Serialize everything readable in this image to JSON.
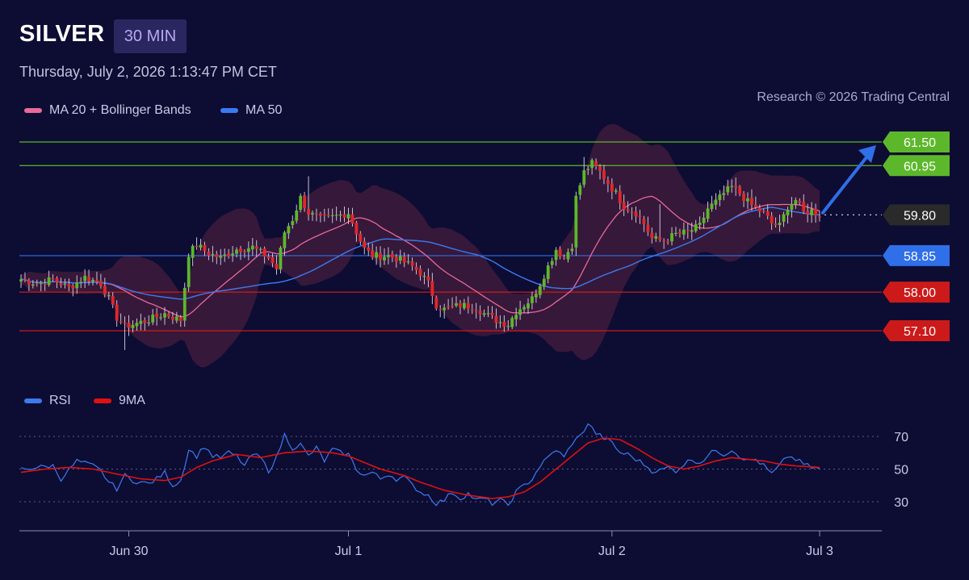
{
  "header": {
    "symbol": "SILVER",
    "timeframe": "30 MIN",
    "timestamp": "Thursday, July 2, 2026 1:13:47 PM CET",
    "credit": "Research © 2026 Trading Central"
  },
  "legend_price": [
    {
      "label": "MA 20 + Bollinger Bands",
      "color": "#e8699a"
    },
    {
      "label": "MA 50",
      "color": "#3b7bf0"
    }
  ],
  "legend_rsi": [
    {
      "label": "RSI",
      "color": "#3b7bf0"
    },
    {
      "label": "9MA",
      "color": "#e01010"
    }
  ],
  "colors": {
    "background": "#0d0c33",
    "bull": "#5cb82a",
    "bear": "#e0282a",
    "resistance": "#5cb82a",
    "pivot": "#2f6fe8",
    "support": "#cc1a1a",
    "current": "#2a2a2a",
    "arrow": "#2f6fe8",
    "band_fill": "#5a2240"
  },
  "chart_data": [
    {
      "type": "candlestick",
      "title": "SILVER",
      "ylim": [
        56.6,
        62.0
      ],
      "x_ticks": [
        {
          "label": "Jun 30",
          "bar": 27
        },
        {
          "label": "Jul 1",
          "bar": 82
        },
        {
          "label": "Jul 2",
          "bar": 148
        },
        {
          "label": "Jul 3",
          "bar": 200
        }
      ],
      "levels": [
        {
          "value": 61.5,
          "label": "61.50",
          "kind": "resistance"
        },
        {
          "value": 60.95,
          "label": "60.95",
          "kind": "resistance"
        },
        {
          "value": 59.8,
          "label": "59.80",
          "kind": "current"
        },
        {
          "value": 58.85,
          "label": "58.85",
          "kind": "pivot"
        },
        {
          "value": 58.0,
          "label": "58.00",
          "kind": "support"
        },
        {
          "value": 57.1,
          "label": "57.10",
          "kind": "support"
        }
      ],
      "close_anchors": [
        [
          0,
          58.3
        ],
        [
          4,
          58.2
        ],
        [
          8,
          58.3
        ],
        [
          12,
          58.1
        ],
        [
          16,
          58.35
        ],
        [
          20,
          58.2
        ],
        [
          22,
          57.85
        ],
        [
          24,
          57.4
        ],
        [
          26,
          57.2
        ],
        [
          28,
          57.25
        ],
        [
          32,
          57.35
        ],
        [
          36,
          57.5
        ],
        [
          40,
          57.35
        ],
        [
          42,
          58.9
        ],
        [
          44,
          59.1
        ],
        [
          47,
          58.9
        ],
        [
          50,
          58.8
        ],
        [
          54,
          59.0
        ],
        [
          58,
          59.05
        ],
        [
          62,
          58.8
        ],
        [
          64,
          58.55
        ],
        [
          66,
          59.4
        ],
        [
          68,
          59.7
        ],
        [
          70,
          60.2
        ],
        [
          72,
          59.85
        ],
        [
          75,
          59.7
        ],
        [
          78,
          59.75
        ],
        [
          82,
          59.85
        ],
        [
          84,
          59.4
        ],
        [
          86,
          59.0
        ],
        [
          88,
          58.85
        ],
        [
          92,
          58.85
        ],
        [
          95,
          58.75
        ],
        [
          98,
          58.6
        ],
        [
          100,
          58.45
        ],
        [
          102,
          58.2
        ],
        [
          104,
          57.7
        ],
        [
          106,
          57.6
        ],
        [
          110,
          57.7
        ],
        [
          114,
          57.65
        ],
        [
          116,
          57.5
        ],
        [
          118,
          57.4
        ],
        [
          120,
          57.3
        ],
        [
          122,
          57.25
        ],
        [
          124,
          57.55
        ],
        [
          126,
          57.7
        ],
        [
          128,
          57.85
        ],
        [
          130,
          58.2
        ],
        [
          132,
          58.6
        ],
        [
          134,
          59.0
        ],
        [
          136,
          58.8
        ],
        [
          138,
          59.1
        ],
        [
          139,
          60.2
        ],
        [
          141,
          60.8
        ],
        [
          143,
          61.0
        ],
        [
          145,
          60.8
        ],
        [
          147,
          60.55
        ],
        [
          149,
          60.3
        ],
        [
          151,
          60.0
        ],
        [
          154,
          59.85
        ],
        [
          156,
          59.6
        ],
        [
          158,
          59.25
        ],
        [
          161,
          59.2
        ],
        [
          164,
          59.35
        ],
        [
          167,
          59.4
        ],
        [
          170,
          59.55
        ],
        [
          172,
          59.95
        ],
        [
          174,
          60.1
        ],
        [
          176,
          60.3
        ],
        [
          178,
          60.45
        ],
        [
          180,
          60.3
        ],
        [
          182,
          60.1
        ],
        [
          184,
          59.95
        ],
        [
          186,
          59.85
        ],
        [
          188,
          59.6
        ],
        [
          190,
          59.55
        ],
        [
          192,
          60.0
        ],
        [
          194,
          60.15
        ],
        [
          196,
          59.85
        ],
        [
          198,
          59.9
        ],
        [
          200,
          59.8
        ]
      ]
    },
    {
      "type": "line",
      "series": [
        {
          "name": "RSI",
          "values_anchors": [
            [
              0,
              50
            ],
            [
              4,
              51
            ],
            [
              8,
              52
            ],
            [
              10,
              44
            ],
            [
              14,
              55
            ],
            [
              18,
              52
            ],
            [
              20,
              49
            ],
            [
              22,
              42
            ],
            [
              24,
              38
            ],
            [
              26,
              46
            ],
            [
              28,
              43
            ],
            [
              32,
              41
            ],
            [
              34,
              44
            ],
            [
              36,
              48
            ],
            [
              38,
              40
            ],
            [
              40,
              43
            ],
            [
              42,
              62
            ],
            [
              44,
              58
            ],
            [
              46,
              64
            ],
            [
              48,
              58
            ],
            [
              50,
              57
            ],
            [
              52,
              60
            ],
            [
              54,
              58
            ],
            [
              56,
              52
            ],
            [
              58,
              59
            ],
            [
              60,
              57
            ],
            [
              62,
              49
            ],
            [
              64,
              57
            ],
            [
              66,
              71
            ],
            [
              68,
              63
            ],
            [
              70,
              65
            ],
            [
              72,
              58
            ],
            [
              74,
              63
            ],
            [
              76,
              55
            ],
            [
              78,
              62
            ],
            [
              80,
              60
            ],
            [
              82,
              59
            ],
            [
              84,
              50
            ],
            [
              86,
              46
            ],
            [
              88,
              48
            ],
            [
              90,
              44
            ],
            [
              92,
              47
            ],
            [
              94,
              44
            ],
            [
              96,
              45
            ],
            [
              98,
              40
            ],
            [
              100,
              36
            ],
            [
              102,
              34
            ],
            [
              104,
              29
            ],
            [
              106,
              31
            ],
            [
              108,
              36
            ],
            [
              110,
              32
            ],
            [
              112,
              35
            ],
            [
              114,
              31
            ],
            [
              116,
              32
            ],
            [
              118,
              29
            ],
            [
              120,
              31
            ],
            [
              122,
              28
            ],
            [
              124,
              36
            ],
            [
              126,
              40
            ],
            [
              128,
              44
            ],
            [
              130,
              52
            ],
            [
              132,
              57
            ],
            [
              134,
              62
            ],
            [
              136,
              57
            ],
            [
              138,
              66
            ],
            [
              140,
              70
            ],
            [
              142,
              78
            ],
            [
              144,
              72
            ],
            [
              146,
              69
            ],
            [
              148,
              66
            ],
            [
              150,
              60
            ],
            [
              152,
              59
            ],
            [
              154,
              56
            ],
            [
              156,
              53
            ],
            [
              158,
              49
            ],
            [
              160,
              49
            ],
            [
              162,
              51
            ],
            [
              164,
              49
            ],
            [
              166,
              53
            ],
            [
              168,
              56
            ],
            [
              170,
              54
            ],
            [
              172,
              58
            ],
            [
              174,
              62
            ],
            [
              176,
              59
            ],
            [
              178,
              62
            ],
            [
              180,
              58
            ],
            [
              182,
              55
            ],
            [
              184,
              56
            ],
            [
              186,
              52
            ],
            [
              188,
              47
            ],
            [
              190,
              52
            ],
            [
              192,
              58
            ],
            [
              194,
              56
            ],
            [
              196,
              53
            ],
            [
              198,
              51
            ],
            [
              200,
              50
            ]
          ]
        },
        {
          "name": "9MA",
          "values_anchors": [
            [
              0,
              48
            ],
            [
              6,
              50
            ],
            [
              12,
              51
            ],
            [
              18,
              50
            ],
            [
              24,
              47
            ],
            [
              30,
              44
            ],
            [
              36,
              43
            ],
            [
              40,
              45
            ],
            [
              44,
              51
            ],
            [
              48,
              55
            ],
            [
              54,
              59
            ],
            [
              60,
              57
            ],
            [
              66,
              60
            ],
            [
              72,
              61
            ],
            [
              78,
              60
            ],
            [
              82,
              58
            ],
            [
              86,
              54
            ],
            [
              90,
              50
            ],
            [
              96,
              46
            ],
            [
              100,
              42
            ],
            [
              106,
              37
            ],
            [
              112,
              34
            ],
            [
              118,
              32
            ],
            [
              122,
              33
            ],
            [
              126,
              36
            ],
            [
              130,
              42
            ],
            [
              134,
              50
            ],
            [
              138,
              58
            ],
            [
              142,
              66
            ],
            [
              146,
              69
            ],
            [
              150,
              68
            ],
            [
              154,
              63
            ],
            [
              158,
              57
            ],
            [
              162,
              52
            ],
            [
              166,
              50
            ],
            [
              170,
              52
            ],
            [
              174,
              55
            ],
            [
              178,
              57
            ],
            [
              182,
              56
            ],
            [
              186,
              55
            ],
            [
              190,
              53
            ],
            [
              194,
              52
            ],
            [
              200,
              51
            ]
          ]
        }
      ],
      "ylim": [
        20,
        80
      ],
      "gridlines": [
        70,
        50,
        30
      ],
      "y_ticks": [
        "70",
        "50",
        "30"
      ]
    }
  ]
}
